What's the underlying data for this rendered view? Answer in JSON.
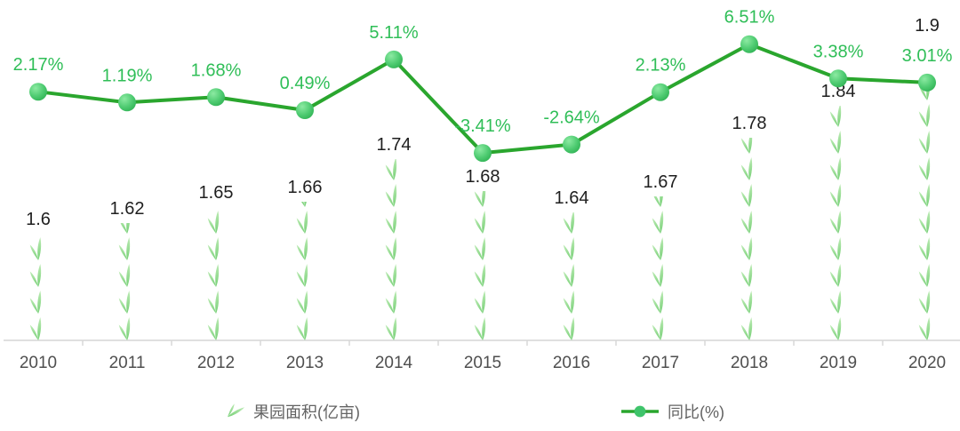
{
  "chart_data": {
    "type": "combo",
    "subtype": "pictorial-bar + line",
    "categories": [
      "2010",
      "2011",
      "2012",
      "2013",
      "2014",
      "2015",
      "2016",
      "2017",
      "2018",
      "2019",
      "2020"
    ],
    "series": [
      {
        "name": "果园面积(亿亩)",
        "type": "bar",
        "render": "pictorial sprout symbols stacked vertically",
        "symbol": "sprout-icon",
        "unit": "亿亩",
        "values": [
          1.6,
          1.62,
          1.65,
          1.66,
          1.74,
          1.68,
          1.64,
          1.67,
          1.78,
          1.84,
          1.9
        ],
        "value_labels": [
          "1.6",
          "1.62",
          "1.65",
          "1.66",
          "1.74",
          "1.68",
          "1.64",
          "1.67",
          "1.78",
          "1.84",
          "1.9"
        ]
      },
      {
        "name": "同比(%)",
        "type": "line",
        "unit": "%",
        "values": [
          2.17,
          1.19,
          1.68,
          0.49,
          5.11,
          -3.41,
          -2.64,
          2.13,
          6.51,
          3.38,
          3.01
        ],
        "value_labels": [
          "2.17%",
          "1.19%",
          "1.68%",
          "0.49%",
          "5.11%",
          "-3.41%",
          "-2.64%",
          "2.13%",
          "6.51%",
          "3.38%",
          "3.01%"
        ]
      }
    ],
    "title": "",
    "xlabel": "",
    "ylabel": "",
    "grid": false,
    "y_axes_visible": false,
    "bar_axis_min_estimate": 1.4,
    "line_axis_range_estimate": [
      -6,
      8.5
    ],
    "legend_position": "bottom"
  },
  "legend": {
    "area_label": "果园面积(亿亩)",
    "yoy_label": "同比(%)"
  },
  "colors": {
    "background": "#ffffff",
    "line": "#2aa62e",
    "dot_center": "#8ceaa2",
    "dot_mid": "#4ecb71",
    "dot_edge": "#2aad4e",
    "pct_label": "#2fbe57",
    "value_label": "#1f1f1f",
    "sprout_top": "#bdebb5",
    "sprout_bottom": "#74cf74",
    "axis_line": "#d6d6d6",
    "axis_text": "#4f4f4f",
    "legend_text": "#636363"
  }
}
